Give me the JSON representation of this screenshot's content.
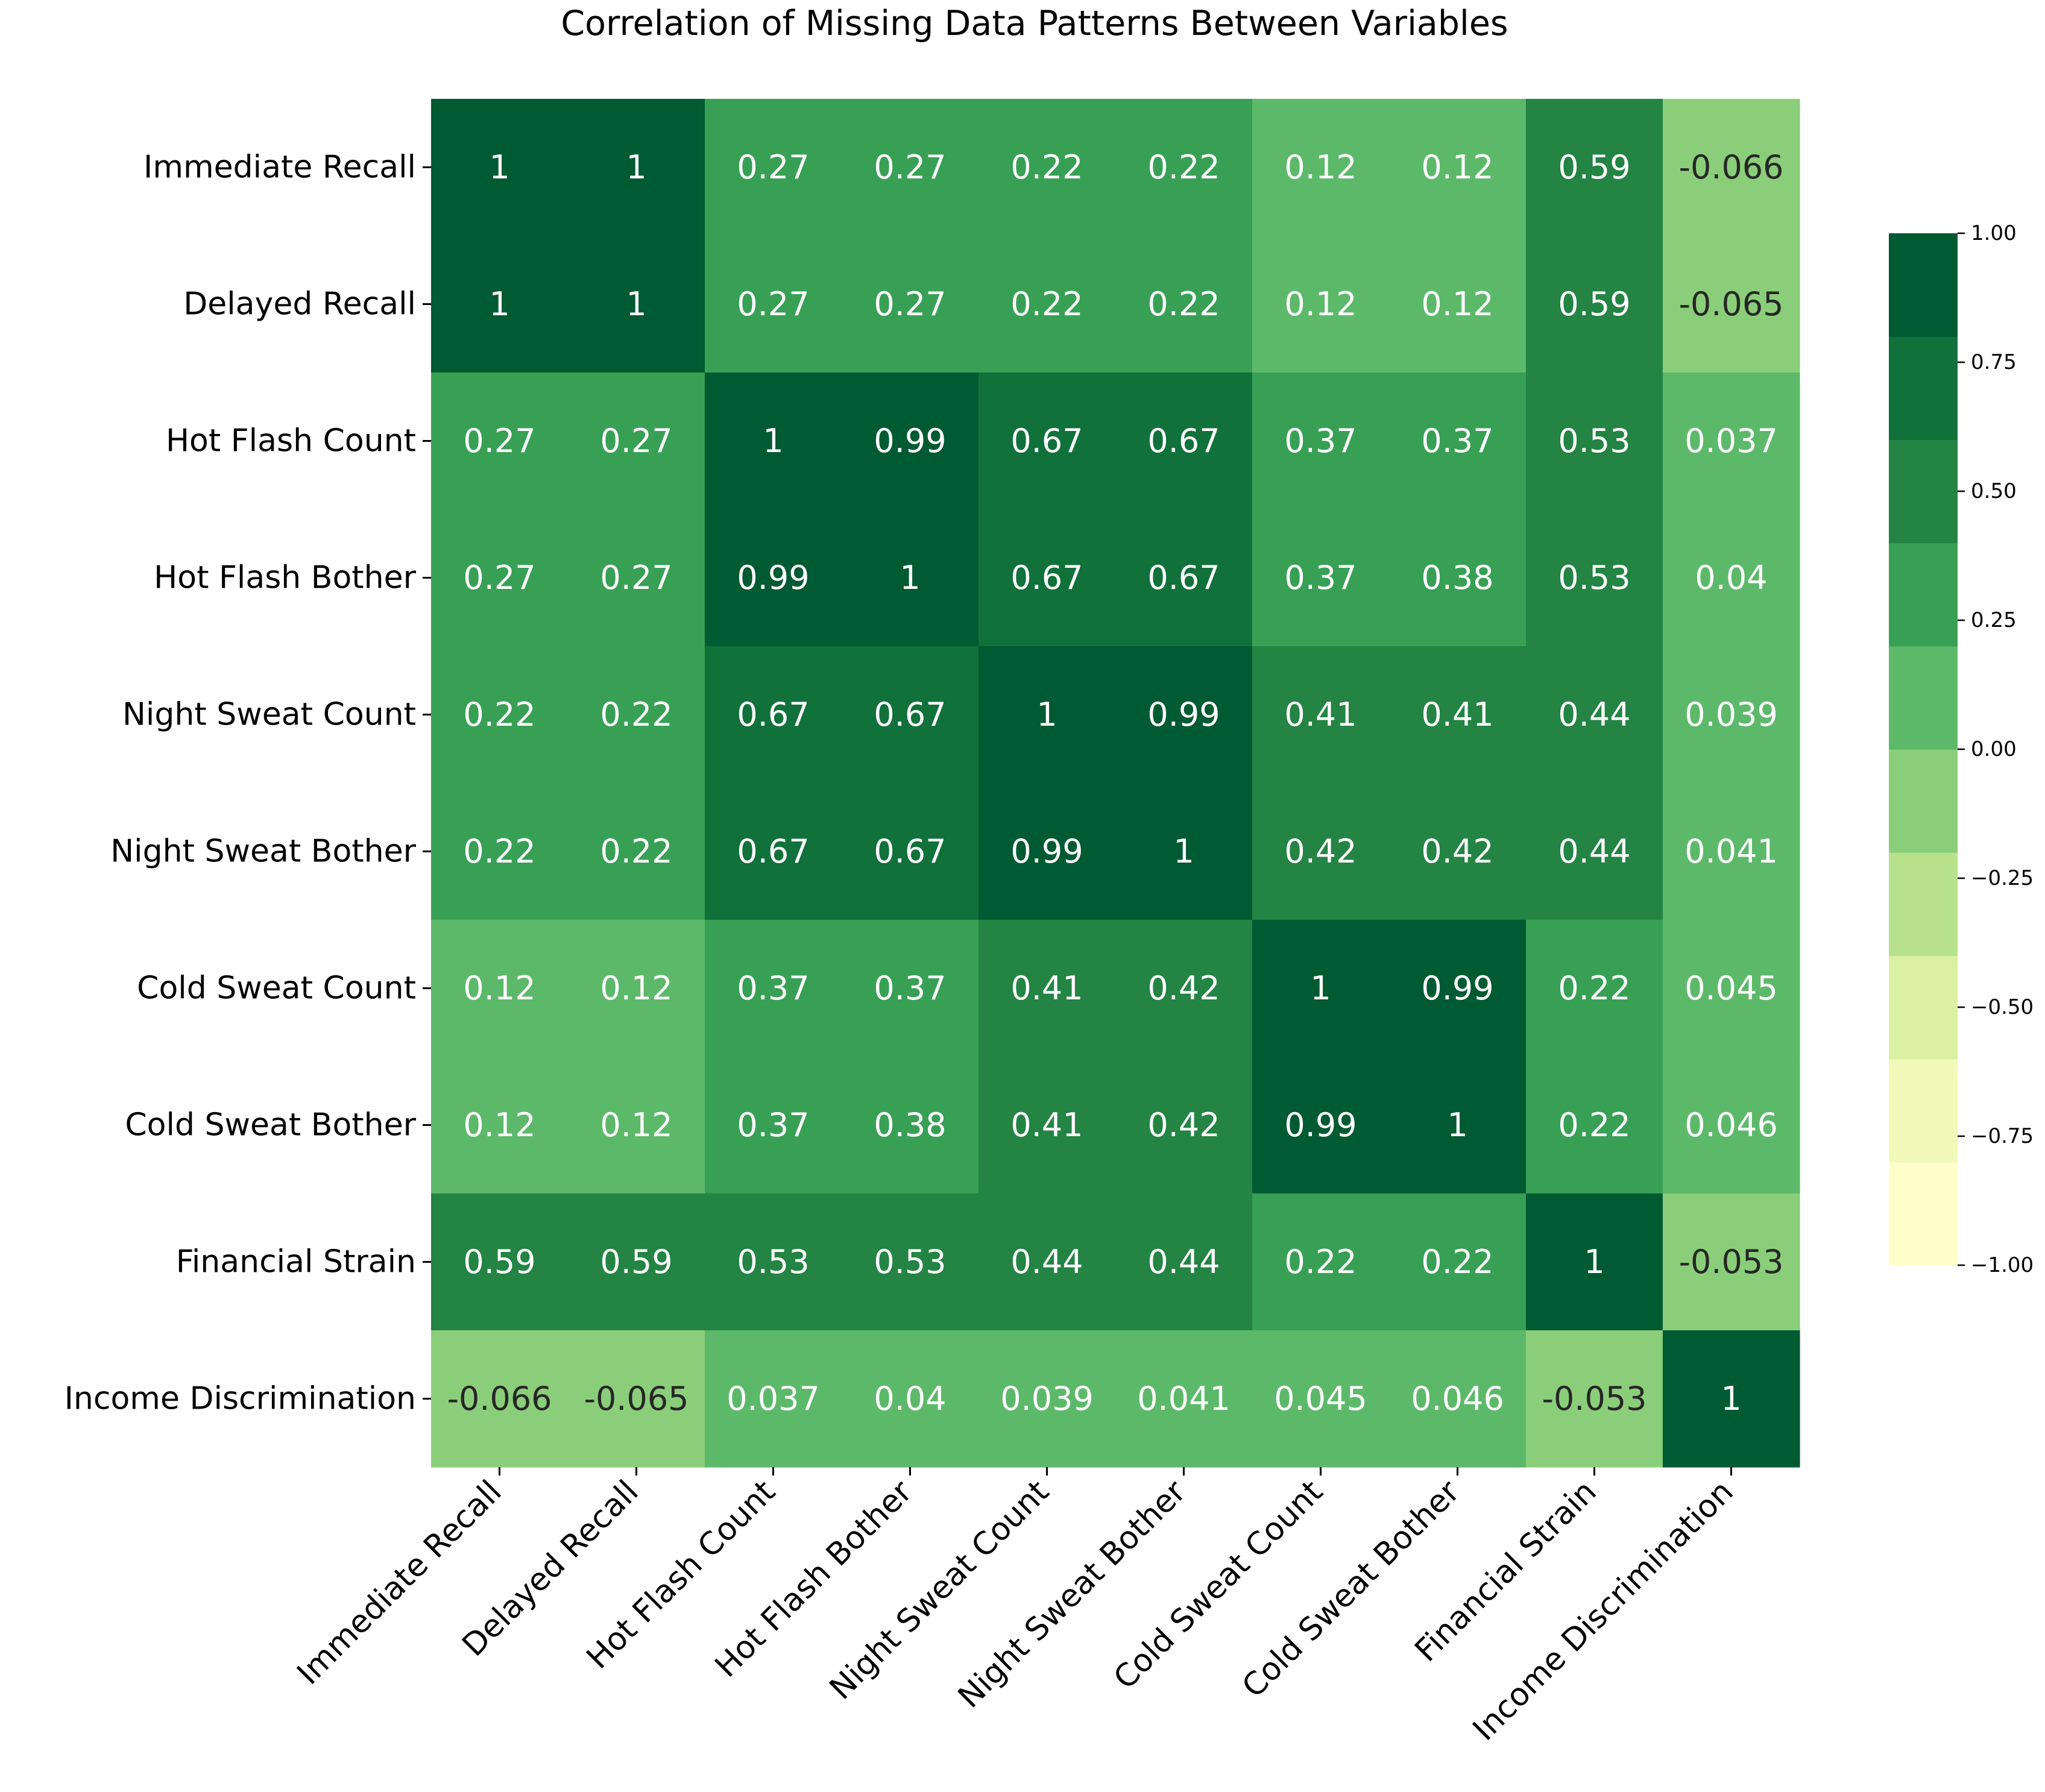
{
  "chart_data": {
    "type": "heatmap",
    "title": "Correlation of Missing Data Patterns Between Variables",
    "row_labels": [
      "Immediate Recall",
      "Delayed Recall",
      "Hot Flash Count",
      "Hot Flash Bother",
      "Night Sweat Count",
      "Night Sweat Bother",
      "Cold Sweat Count",
      "Cold Sweat Bother",
      "Financial Strain",
      "Income Discrimination"
    ],
    "col_labels": [
      "Immediate Recall",
      "Delayed Recall",
      "Hot Flash Count",
      "Hot Flash Bother",
      "Night Sweat Count",
      "Night Sweat Bother",
      "Cold Sweat Count",
      "Cold Sweat Bother",
      "Financial Strain",
      "Income Discrimination"
    ],
    "values": [
      [
        1,
        1,
        0.27,
        0.27,
        0.22,
        0.22,
        0.12,
        0.12,
        0.59,
        -0.066
      ],
      [
        1,
        1,
        0.27,
        0.27,
        0.22,
        0.22,
        0.12,
        0.12,
        0.59,
        -0.065
      ],
      [
        0.27,
        0.27,
        1,
        0.99,
        0.67,
        0.67,
        0.37,
        0.37,
        0.53,
        0.037
      ],
      [
        0.27,
        0.27,
        0.99,
        1,
        0.67,
        0.67,
        0.37,
        0.38,
        0.53,
        0.04
      ],
      [
        0.22,
        0.22,
        0.67,
        0.67,
        1,
        0.99,
        0.41,
        0.41,
        0.44,
        0.039
      ],
      [
        0.22,
        0.22,
        0.67,
        0.67,
        0.99,
        1,
        0.42,
        0.42,
        0.44,
        0.041
      ],
      [
        0.12,
        0.12,
        0.37,
        0.37,
        0.41,
        0.42,
        1,
        0.99,
        0.22,
        0.045
      ],
      [
        0.12,
        0.12,
        0.37,
        0.38,
        0.41,
        0.42,
        0.99,
        1,
        0.22,
        0.046
      ],
      [
        0.59,
        0.59,
        0.53,
        0.53,
        0.44,
        0.44,
        0.22,
        0.22,
        1,
        -0.053
      ],
      [
        -0.066,
        -0.065,
        0.037,
        0.04,
        0.039,
        0.041,
        0.045,
        0.046,
        -0.053,
        1
      ]
    ],
    "value_labels": [
      [
        "1",
        "1",
        "0.27",
        "0.27",
        "0.22",
        "0.22",
        "0.12",
        "0.12",
        "0.59",
        "-0.066"
      ],
      [
        "1",
        "1",
        "0.27",
        "0.27",
        "0.22",
        "0.22",
        "0.12",
        "0.12",
        "0.59",
        "-0.065"
      ],
      [
        "0.27",
        "0.27",
        "1",
        "0.99",
        "0.67",
        "0.67",
        "0.37",
        "0.37",
        "0.53",
        "0.037"
      ],
      [
        "0.27",
        "0.27",
        "0.99",
        "1",
        "0.67",
        "0.67",
        "0.37",
        "0.38",
        "0.53",
        "0.04"
      ],
      [
        "0.22",
        "0.22",
        "0.67",
        "0.67",
        "1",
        "0.99",
        "0.41",
        "0.41",
        "0.44",
        "0.039"
      ],
      [
        "0.22",
        "0.22",
        "0.67",
        "0.67",
        "0.99",
        "1",
        "0.42",
        "0.42",
        "0.44",
        "0.041"
      ],
      [
        "0.12",
        "0.12",
        "0.37",
        "0.37",
        "0.41",
        "0.42",
        "1",
        "0.99",
        "0.22",
        "0.045"
      ],
      [
        "0.12",
        "0.12",
        "0.37",
        "0.38",
        "0.41",
        "0.42",
        "0.99",
        "1",
        "0.22",
        "0.046"
      ],
      [
        "0.59",
        "0.59",
        "0.53",
        "0.53",
        "0.44",
        "0.44",
        "0.22",
        "0.22",
        "1",
        "-0.053"
      ],
      [
        "-0.066",
        "-0.065",
        "0.037",
        "0.04",
        "0.039",
        "0.041",
        "0.045",
        "0.046",
        "-0.053",
        "1"
      ]
    ],
    "colorbar": {
      "range": [
        -1,
        1
      ],
      "ticks": [
        1.0,
        0.75,
        0.5,
        0.25,
        0.0,
        -0.25,
        -0.5,
        -0.75,
        -1.0
      ],
      "tick_labels": [
        "1.00",
        "0.75",
        "0.50",
        "0.25",
        "0.00",
        "−0.25",
        "−0.50",
        "−0.75",
        "−1.00"
      ],
      "bins": 10,
      "colors_low_to_high": [
        "#ffffcc",
        "#f1f9b9",
        "#daf0a3",
        "#b8e18e",
        "#8bce7a",
        "#5db96a",
        "#38a055",
        "#238443",
        "#10713a",
        "#005a32"
      ]
    },
    "dark_text_color": "#262626",
    "light_text_color": "#ffffff"
  }
}
